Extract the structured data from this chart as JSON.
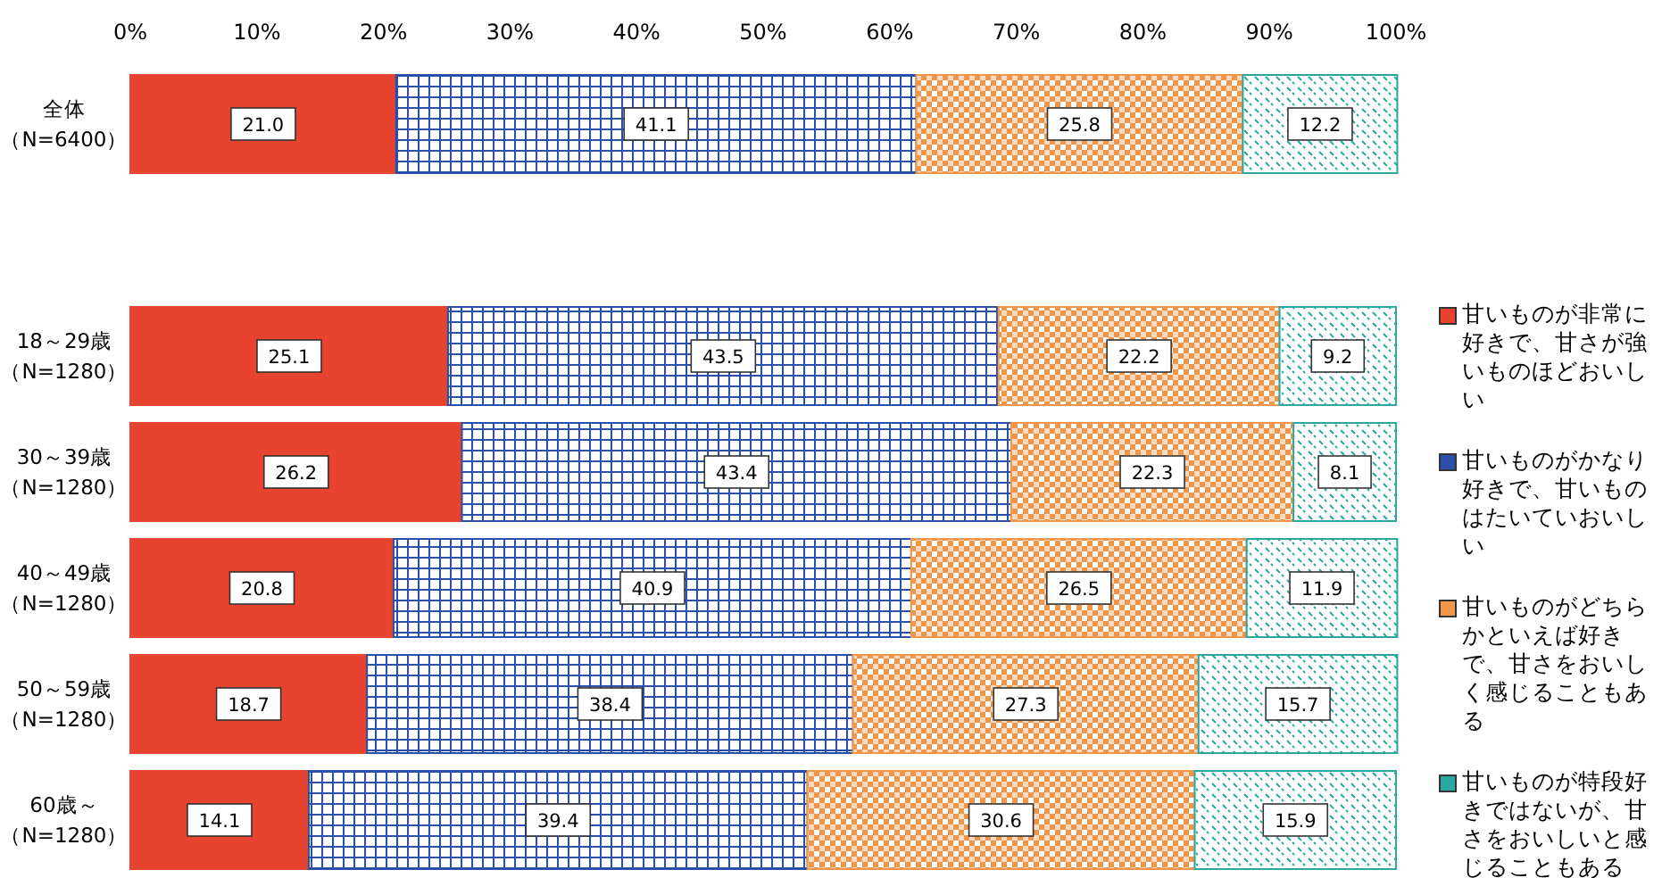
{
  "chart_data": {
    "type": "bar",
    "orientation": "horizontal",
    "stacked": true,
    "legend": "right",
    "categories": [
      "全体（N=6400）",
      null,
      "18～29歳（N=1280）",
      "30～39歳（N=1280）",
      "40～49歳（N=1280）",
      "50～59歳（N=1280）",
      "60歳～（N=1280）"
    ],
    "xlim": [
      0,
      100
    ],
    "xticks": [
      {
        "value": 0,
        "label": "0%"
      },
      {
        "value": 10,
        "label": "10%"
      },
      {
        "value": 20,
        "label": "20%"
      },
      {
        "value": 30,
        "label": "30%"
      },
      {
        "value": 40,
        "label": "40%"
      },
      {
        "value": 50,
        "label": "50%"
      },
      {
        "value": 60,
        "label": "60%"
      },
      {
        "value": 70,
        "label": "70%"
      },
      {
        "value": 80,
        "label": "80%"
      },
      {
        "value": 90,
        "label": "90%"
      },
      {
        "value": 100,
        "label": "100%"
      }
    ],
    "series": [
      {
        "name": "甘いものが非常に好きで、甘さが強いものほどおいしい",
        "color": "#e8432e",
        "values": [
          21.0,
          null,
          25.1,
          26.2,
          20.8,
          18.7,
          14.1
        ],
        "value_labels": [
          "21.0",
          null,
          "25.1",
          "26.2",
          "20.8",
          "18.7",
          "14.1"
        ]
      },
      {
        "name": "甘いものがかなり好きで、甘いものはたいていおいしい",
        "color": "#2a4fa8",
        "values": [
          41.1,
          null,
          43.5,
          43.4,
          40.9,
          38.4,
          39.4
        ],
        "value_labels": [
          "41.1",
          null,
          "43.5",
          "43.4",
          "40.9",
          "38.4",
          "39.4"
        ]
      },
      {
        "name": "甘いものがどちらかといえば好きで、甘さをおいしく感じることもある",
        "color": "#f0964a",
        "values": [
          25.8,
          null,
          22.2,
          22.3,
          26.5,
          27.3,
          30.6
        ],
        "value_labels": [
          "25.8",
          null,
          "22.2",
          "22.3",
          "26.5",
          "27.3",
          "30.6"
        ]
      },
      {
        "name": "甘いものが特段好きではないが、甘さをおいしいと感じることもある",
        "color": "#2aa7a0",
        "values": [
          12.2,
          null,
          9.2,
          8.1,
          11.9,
          15.7,
          15.9
        ],
        "value_labels": [
          "12.2",
          null,
          "9.2",
          "8.1",
          "11.9",
          "15.7",
          "15.9"
        ]
      }
    ]
  }
}
